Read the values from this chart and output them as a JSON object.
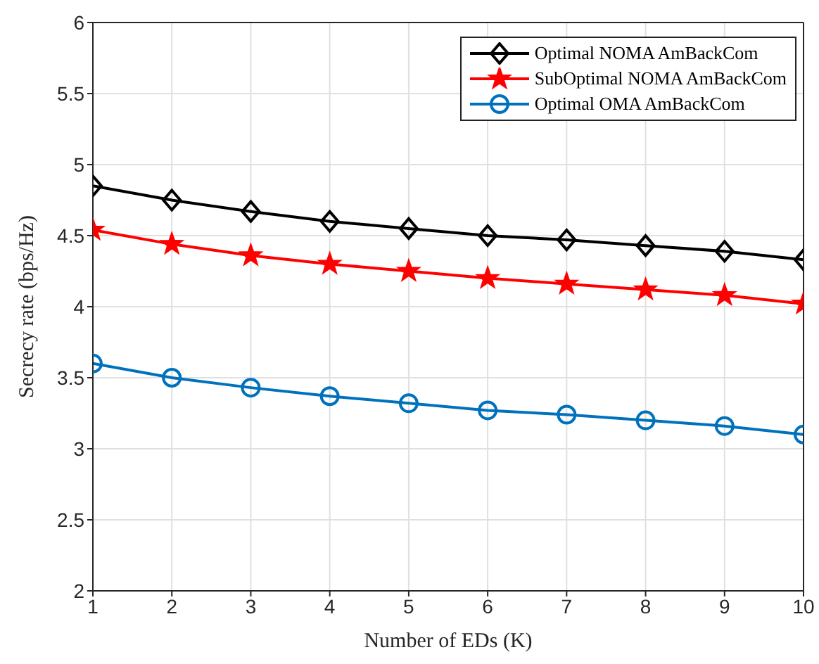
{
  "chart_data": {
    "type": "line",
    "xlabel": "Number of EDs (K)",
    "ylabel": "Secrecy rate (bps/Hz)",
    "x": [
      1,
      2,
      3,
      4,
      5,
      6,
      7,
      8,
      9,
      10
    ],
    "series": [
      {
        "name": "Optimal NOMA AmBackCom",
        "color": "#000000",
        "marker": "diamond",
        "values": [
          4.85,
          4.75,
          4.67,
          4.6,
          4.55,
          4.5,
          4.47,
          4.43,
          4.39,
          4.33
        ]
      },
      {
        "name": "SubOptimal NOMA AmBackCom",
        "color": "#ff0000",
        "marker": "star",
        "values": [
          4.54,
          4.44,
          4.36,
          4.3,
          4.25,
          4.2,
          4.16,
          4.12,
          4.08,
          4.02
        ]
      },
      {
        "name": "Optimal OMA AmBackCom",
        "color": "#0072bd",
        "marker": "circle",
        "values": [
          3.6,
          3.5,
          3.43,
          3.37,
          3.32,
          3.27,
          3.24,
          3.2,
          3.16,
          3.1
        ]
      }
    ],
    "xlim": [
      1,
      10
    ],
    "xticks": [
      1,
      2,
      3,
      4,
      5,
      6,
      7,
      8,
      9,
      10
    ],
    "ylim": [
      2,
      6
    ],
    "yticks": [
      2,
      2.5,
      3,
      3.5,
      4,
      4.5,
      5,
      5.5,
      6
    ],
    "grid": true,
    "legend": "top right",
    "line_style": "solid"
  }
}
